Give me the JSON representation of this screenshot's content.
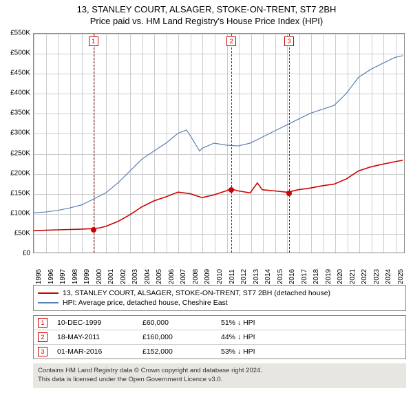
{
  "title": {
    "line1": "13, STANLEY COURT, ALSAGER, STOKE-ON-TRENT, ST7 2BH",
    "line2": "Price paid vs. HM Land Registry's House Price Index (HPI)"
  },
  "chart": {
    "type": "line",
    "background_color": "#ffffff",
    "grid_color": "#cccccc",
    "border_color": "#888888",
    "xlim": [
      1995,
      2025.8
    ],
    "ylim": [
      0,
      550000
    ],
    "ytick_step": 50000,
    "yticks": [
      "£0",
      "£50K",
      "£100K",
      "£150K",
      "£200K",
      "£250K",
      "£300K",
      "£350K",
      "£400K",
      "£450K",
      "£500K",
      "£550K"
    ],
    "xticks": [
      1995,
      1996,
      1997,
      1998,
      1999,
      2000,
      2001,
      2002,
      2003,
      2004,
      2005,
      2006,
      2007,
      2008,
      2009,
      2010,
      2011,
      2012,
      2013,
      2014,
      2015,
      2016,
      2017,
      2018,
      2019,
      2020,
      2021,
      2022,
      2023,
      2024,
      2025
    ],
    "series": [
      {
        "name": "property",
        "color": "#cc0000",
        "line_width": 1.6,
        "points": [
          [
            1995,
            55000
          ],
          [
            1996,
            56000
          ],
          [
            1997,
            57000
          ],
          [
            1998,
            58000
          ],
          [
            1999,
            59000
          ],
          [
            1999.94,
            60000
          ],
          [
            2000.5,
            62000
          ],
          [
            2001,
            66000
          ],
          [
            2002,
            78000
          ],
          [
            2003,
            95000
          ],
          [
            2004,
            115000
          ],
          [
            2005,
            130000
          ],
          [
            2006,
            140000
          ],
          [
            2007,
            152000
          ],
          [
            2008,
            148000
          ],
          [
            2009,
            138000
          ],
          [
            2010,
            145000
          ],
          [
            2011,
            155000
          ],
          [
            2011.38,
            160000
          ],
          [
            2012,
            155000
          ],
          [
            2013,
            150000
          ],
          [
            2013.6,
            175000
          ],
          [
            2014,
            158000
          ],
          [
            2015,
            155000
          ],
          [
            2016,
            152000
          ],
          [
            2016.17,
            152000
          ],
          [
            2017,
            158000
          ],
          [
            2018,
            162000
          ],
          [
            2019,
            168000
          ],
          [
            2020,
            172000
          ],
          [
            2021,
            185000
          ],
          [
            2022,
            205000
          ],
          [
            2023,
            215000
          ],
          [
            2024,
            222000
          ],
          [
            2025,
            228000
          ],
          [
            2025.7,
            232000
          ]
        ]
      },
      {
        "name": "hpi",
        "color": "#5b7fb3",
        "line_width": 1.2,
        "points": [
          [
            1995,
            100000
          ],
          [
            1996,
            102000
          ],
          [
            1997,
            106000
          ],
          [
            1998,
            112000
          ],
          [
            1999,
            120000
          ],
          [
            2000,
            135000
          ],
          [
            2001,
            150000
          ],
          [
            2002,
            175000
          ],
          [
            2003,
            205000
          ],
          [
            2004,
            235000
          ],
          [
            2005,
            255000
          ],
          [
            2006,
            275000
          ],
          [
            2007,
            300000
          ],
          [
            2007.7,
            308000
          ],
          [
            2008,
            295000
          ],
          [
            2008.8,
            255000
          ],
          [
            2009,
            262000
          ],
          [
            2010,
            275000
          ],
          [
            2011,
            270000
          ],
          [
            2012,
            268000
          ],
          [
            2013,
            275000
          ],
          [
            2014,
            290000
          ],
          [
            2015,
            305000
          ],
          [
            2016,
            320000
          ],
          [
            2017,
            335000
          ],
          [
            2018,
            350000
          ],
          [
            2019,
            360000
          ],
          [
            2020,
            370000
          ],
          [
            2021,
            400000
          ],
          [
            2022,
            440000
          ],
          [
            2023,
            460000
          ],
          [
            2024,
            475000
          ],
          [
            2025,
            490000
          ],
          [
            2025.7,
            495000
          ]
        ]
      }
    ],
    "sale_markers": [
      {
        "n": "1",
        "x": 1999.94,
        "y": 60000,
        "color": "#cc0000"
      },
      {
        "n": "2",
        "x": 2011.38,
        "y": 160000,
        "color": "#cc0000"
      },
      {
        "n": "3",
        "x": 2016.17,
        "y": 152000,
        "color": "#cc0000"
      }
    ]
  },
  "legend": {
    "items": [
      {
        "label": "13, STANLEY COURT, ALSAGER, STOKE-ON-TRENT, ST7 2BH (detached house)",
        "color": "#cc0000"
      },
      {
        "label": "HPI: Average price, detached house, Cheshire East",
        "color": "#5b7fb3"
      }
    ]
  },
  "sales": [
    {
      "n": "1",
      "date": "10-DEC-1999",
      "price": "£60,000",
      "diff": "51% ↓ HPI",
      "color": "#cc0000"
    },
    {
      "n": "2",
      "date": "18-MAY-2011",
      "price": "£160,000",
      "diff": "44% ↓ HPI",
      "color": "#cc0000"
    },
    {
      "n": "3",
      "date": "01-MAR-2016",
      "price": "£152,000",
      "diff": "53% ↓ HPI",
      "color": "#cc0000"
    }
  ],
  "footer": {
    "line1": "Contains HM Land Registry data © Crown copyright and database right 2024.",
    "line2": "This data is licensed under the Open Government Licence v3.0."
  }
}
